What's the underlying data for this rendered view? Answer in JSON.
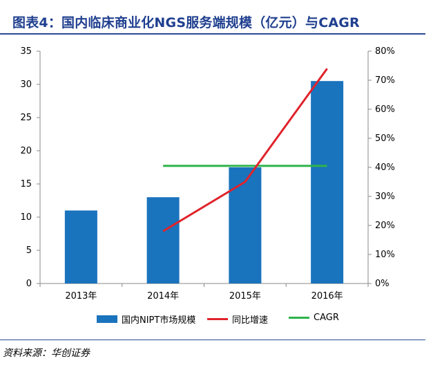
{
  "header": {
    "title": "图表4：国内临床商业化NGS服务端规模（亿元）与CAGR"
  },
  "footer": {
    "source": "资料来源：华创证券"
  },
  "colors": {
    "bar": "#1a73bd",
    "growth_line": "#e0232b",
    "cagr_line": "#2eb34a",
    "rule": "#2a4a96",
    "title": "#1f3f8f"
  },
  "chart_data": {
    "type": "bar",
    "categories": [
      "2013年",
      "2014年",
      "2015年",
      "2016年"
    ],
    "y_left": {
      "ylim": [
        0,
        35
      ],
      "ticks": [
        "0",
        "5",
        "10",
        "15",
        "20",
        "25",
        "30",
        "35"
      ]
    },
    "y_right": {
      "ylim": [
        0,
        0.8
      ],
      "ticks": [
        "0%",
        "10%",
        "20%",
        "30%",
        "40%",
        "50%",
        "60%",
        "70%",
        "80%"
      ]
    },
    "series": [
      {
        "name": "国内NIPT市场规模",
        "type": "bar",
        "axis": "left",
        "values": [
          11,
          13,
          17.5,
          30.5
        ]
      },
      {
        "name": "同比增速",
        "type": "line",
        "axis": "right",
        "values": [
          null,
          0.18,
          0.35,
          0.74
        ]
      },
      {
        "name": "CAGR",
        "type": "line",
        "axis": "right",
        "values": [
          null,
          0.405,
          0.405,
          0.405
        ]
      }
    ],
    "legend": "bottom",
    "grid": false
  }
}
